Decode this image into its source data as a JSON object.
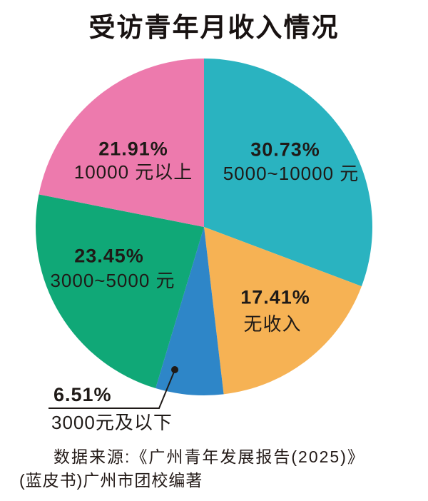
{
  "title": "受访青年月收入情况",
  "chart_data": {
    "type": "pie",
    "title": "受访青年月收入情况",
    "direction": "clockwise",
    "start_angle_deg_from_top": 0,
    "legend": "none",
    "categories": [
      "5000~10000 元",
      "无收入",
      "3000元及以下",
      "3000~5000 元",
      "10000 元以上"
    ],
    "values": [
      30.73,
      17.41,
      6.51,
      23.45,
      21.91
    ],
    "slices": [
      {
        "id": "income-5000-10000",
        "pct_label": "30.73%",
        "label": "5000~10000 元",
        "value": 30.73,
        "color": "#2ab3c0",
        "label_placement": "inside"
      },
      {
        "id": "income-none",
        "pct_label": "17.41%",
        "label": "无收入",
        "value": 17.41,
        "color": "#f6b254",
        "label_placement": "inside"
      },
      {
        "id": "income-below-3000",
        "pct_label": "6.51%",
        "label": "3000元及以下",
        "value": 6.51,
        "color": "#2e86c8",
        "label_placement": "outside-callout"
      },
      {
        "id": "income-3000-5000",
        "pct_label": "23.45%",
        "label": "3000~5000 元",
        "value": 23.45,
        "color": "#10a877",
        "label_placement": "inside"
      },
      {
        "id": "income-above-10000",
        "pct_label": "21.91%",
        "label": "10000 元以上",
        "value": 21.91,
        "color": "#ed7aad",
        "label_placement": "inside"
      }
    ]
  },
  "source": {
    "line1": "数据来源:《广州青年发展报告(2025)》",
    "line2": "(蓝皮书)广州市团校编著"
  },
  "colors": {
    "text": "#1f1a17",
    "leader_line": "#1f1a17",
    "background": "#ffffff"
  }
}
